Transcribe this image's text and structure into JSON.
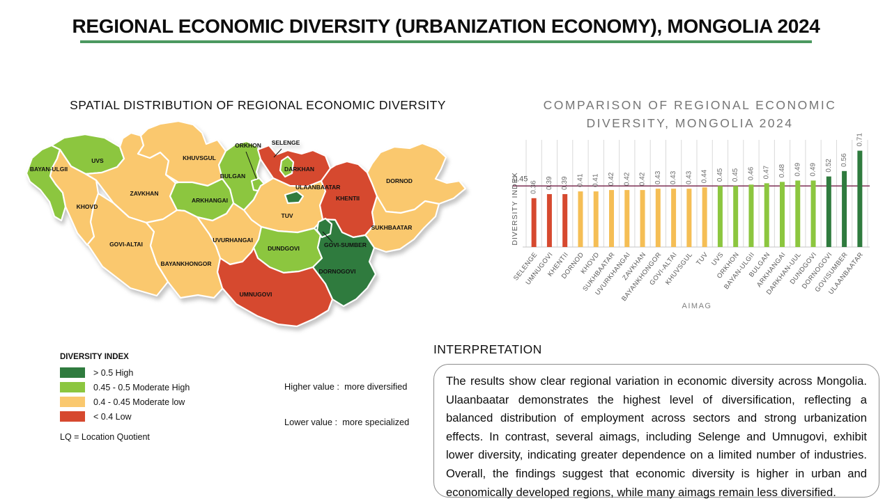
{
  "header": {
    "title": "REGIONAL ECONOMIC DIVERSITY (URBANIZATION ECONOMY), MONGOLIA 2024"
  },
  "map_section": {
    "title": "SPATIAL DISTRIBUTION OF REGIONAL ECONOMIC DIVERSITY",
    "note": [
      "Higher value :  more diversified",
      "Lower value :  more specialized"
    ],
    "legend": {
      "title": "DIVERSITY INDEX",
      "items": [
        {
          "label": "> 0.5 High",
          "category": "high"
        },
        {
          "label": "0.45 - 0.5 Moderate High",
          "category": "moderate_high"
        },
        {
          "label": "0.4 - 0.45 Moderate low",
          "category": "moderate_low"
        },
        {
          "label": "< 0.4 Low",
          "category": "low"
        }
      ],
      "footnote": "LQ = Location Quotient"
    },
    "palette": {
      "high": "#2F7B3E",
      "moderate_high": "#8CC63F",
      "moderate_low": "#FAC86E",
      "low": "#D6492F"
    },
    "regions": [
      {
        "id": "bayan_ulgii",
        "label": "BAYAN-ULGII",
        "category": "moderate_high"
      },
      {
        "id": "uvs",
        "label": "UVS",
        "category": "moderate_high"
      },
      {
        "id": "khovd",
        "label": "KHOVD",
        "category": "moderate_low"
      },
      {
        "id": "zavkhan",
        "label": "ZAVKHAN",
        "category": "moderate_low"
      },
      {
        "id": "govi_altai",
        "label": "GOVI-ALTAI",
        "category": "moderate_low"
      },
      {
        "id": "khuvsgul",
        "label": "KHUVSGUL",
        "category": "moderate_low"
      },
      {
        "id": "bulgan",
        "label": "BULGAN",
        "category": "moderate_high"
      },
      {
        "id": "arkhangai",
        "label": "ARKHANGAI",
        "category": "moderate_high"
      },
      {
        "id": "selenge",
        "label": "SELENGE",
        "category": "low"
      },
      {
        "id": "darkhan",
        "label": "DARKHAN",
        "category": "moderate_high"
      },
      {
        "id": "orkhon",
        "label": "ORKHON",
        "category": "moderate_high"
      },
      {
        "id": "tuv",
        "label": "TUV",
        "category": "moderate_low"
      },
      {
        "id": "ulaanbaatar",
        "label": "ULAANBAATAR",
        "category": "high"
      },
      {
        "id": "khentii",
        "label": "KHENTII",
        "category": "low"
      },
      {
        "id": "dornod",
        "label": "DORNOD",
        "category": "moderate_low"
      },
      {
        "id": "sukhbaatar",
        "label": "SUKHBAATAR",
        "category": "moderate_low"
      },
      {
        "id": "uvurhangai",
        "label": "UVURHANGAI",
        "category": "moderate_low"
      },
      {
        "id": "bayankhongor",
        "label": "BAYANKHONGOR",
        "category": "moderate_low"
      },
      {
        "id": "dundgovi",
        "label": "DUNDGOVI",
        "category": "moderate_high"
      },
      {
        "id": "dornogovi",
        "label": "DORNOGOVI",
        "category": "high"
      },
      {
        "id": "govi_sumber",
        "label": "GOVI-SUMBER",
        "category": "high"
      },
      {
        "id": "umnugovi",
        "label": "UMNUGOVI",
        "category": "low"
      }
    ]
  },
  "chart_data": {
    "type": "bar",
    "title": "COMPARISON OF REGIONAL ECONOMIC DIVERSITY, MONGOLIA 2024",
    "title_lines": [
      "COMPARISON OF REGIONAL ECONOMIC",
      "DIVERSITY, MONGOLIA 2024"
    ],
    "xlabel": "AIMAG",
    "ylabel": "DIVERSITY INDEX",
    "grid": "vertical",
    "reference_line": {
      "value": 0.45,
      "label": "0.45",
      "color": "#7B2D52"
    },
    "categories": [
      "SELENGE",
      "UMNUGOVI",
      "KHENTII",
      "DORNOD",
      "KHOVD",
      "SUKHBAATAR",
      "UVURKHANGAI",
      "ZAVKHAN",
      "BAYANKHONGOR",
      "GOVI-ALTAI",
      "KHUVSGUL",
      "TUV",
      "UVS",
      "ORKHON",
      "BAYAN-ULGII",
      "BULGAN",
      "ARKHANGAI",
      "DARKHAN-UUL",
      "DUNDGOVI",
      "DORNOGOVI",
      "GOVISUMBER",
      "ULAANBAATAR"
    ],
    "values": [
      0.36,
      0.39,
      0.39,
      0.41,
      0.41,
      0.42,
      0.42,
      0.42,
      0.43,
      0.43,
      0.43,
      0.44,
      0.45,
      0.45,
      0.46,
      0.47,
      0.48,
      0.49,
      0.49,
      0.52,
      0.56,
      0.71
    ],
    "bar_colors_rule": {
      "low_below": 0.4,
      "moderate_low_below": 0.45,
      "moderate_high_below": 0.5
    },
    "bar_palette": {
      "low": "#D6492F",
      "moderate_low": "#F5BE55",
      "moderate_high": "#8CC63F",
      "high": "#2F7B3E"
    }
  },
  "interpretation": {
    "heading": "INTERPRETATION",
    "body": "The results show clear regional variation in economic diversity across Mongolia. Ulaanbaatar demonstrates the highest level of diversification, reflecting a balanced distribution of employment across sectors and strong urbanization effects. In contrast, several aimags, including Selenge and Umnugovi, exhibit lower diversity, indicating greater dependence on a limited number of industries. Overall, the findings suggest that economic diversity is higher in urban and economically developed regions, while many aimags remain less diversified."
  }
}
